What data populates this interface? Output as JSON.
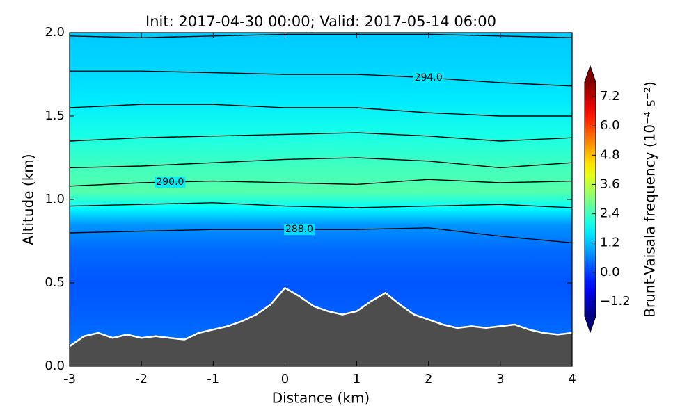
{
  "chart_data": {
    "type": "contour",
    "title": "Init: 2017-04-30 00:00; Valid: 2017-05-14 06:00",
    "xlabel": "Distance (km)",
    "ylabel": "Altitude (km)",
    "xlim": [
      -3,
      4
    ],
    "ylim": [
      0,
      2
    ],
    "xticks": [
      -3,
      -2,
      -1,
      0,
      1,
      2,
      3,
      4
    ],
    "yticks": [
      {
        "value": 0,
        "label": "0.0"
      },
      {
        "value": 0.5,
        "label": "0.5"
      },
      {
        "value": 1,
        "label": "1.0"
      },
      {
        "value": 1.5,
        "label": "1.5"
      },
      {
        "value": 2,
        "label": "2.0"
      }
    ],
    "colormap": "jet",
    "colorbar": {
      "label": "Brunt-Vaisala frequency (10⁻⁴ s⁻²)",
      "lim": [
        -1.8,
        7.8
      ],
      "ticks": [
        {
          "value": -1.2,
          "label": "−1.2"
        },
        {
          "value": 0,
          "label": "0.0"
        },
        {
          "value": 1.2,
          "label": "1.2"
        },
        {
          "value": 2.4,
          "label": "2.4"
        },
        {
          "value": 3.6,
          "label": "3.6"
        },
        {
          "value": 4.8,
          "label": "4.8"
        },
        {
          "value": 6,
          "label": "6.0"
        },
        {
          "value": 7.2,
          "label": "7.2"
        }
      ]
    },
    "field": {
      "y": [
        0,
        0.3,
        0.5,
        0.7,
        0.85,
        0.95,
        1.05,
        1.2,
        1.4,
        1.6,
        1.8,
        2.0
      ],
      "values": [
        0.6,
        0.3,
        0.2,
        0.4,
        0.8,
        1.8,
        2.6,
        2.4,
        2.0,
        1.6,
        1.4,
        1.3
      ]
    },
    "terrain": {
      "color": "#4d4d4d",
      "x": [
        -3,
        -2.8,
        -2.6,
        -2.4,
        -2.2,
        -2,
        -1.8,
        -1.6,
        -1.4,
        -1.2,
        -1,
        -0.8,
        -0.6,
        -0.4,
        -0.2,
        0,
        0.2,
        0.4,
        0.6,
        0.8,
        1,
        1.2,
        1.4,
        1.6,
        1.8,
        2,
        2.2,
        2.4,
        2.6,
        2.8,
        3,
        3.2,
        3.4,
        3.6,
        3.8,
        4
      ],
      "values": [
        0.12,
        0.18,
        0.2,
        0.17,
        0.19,
        0.17,
        0.18,
        0.17,
        0.16,
        0.2,
        0.22,
        0.24,
        0.27,
        0.31,
        0.37,
        0.47,
        0.42,
        0.36,
        0.33,
        0.31,
        0.33,
        0.39,
        0.44,
        0.37,
        0.31,
        0.28,
        0.25,
        0.23,
        0.24,
        0.23,
        0.24,
        0.25,
        0.22,
        0.2,
        0.19,
        0.2
      ]
    },
    "contour_x": [
      -3,
      -2,
      -1,
      0,
      1,
      2,
      3,
      4
    ],
    "contours": [
      {
        "level": 288,
        "label": "288.0",
        "values": [
          0.8,
          0.81,
          0.82,
          0.82,
          0.82,
          0.83,
          0.78,
          0.74
        ]
      },
      {
        "level": 289,
        "values": [
          0.96,
          0.97,
          0.98,
          0.96,
          0.95,
          0.96,
          0.97,
          0.95
        ]
      },
      {
        "level": 290,
        "label": "290.0",
        "values": [
          1.08,
          1.1,
          1.11,
          1.1,
          1.09,
          1.12,
          1.1,
          1.11
        ]
      },
      {
        "level": 291,
        "values": [
          1.19,
          1.2,
          1.22,
          1.24,
          1.25,
          1.23,
          1.19,
          1.22
        ]
      },
      {
        "level": 292,
        "values": [
          1.35,
          1.37,
          1.38,
          1.39,
          1.4,
          1.38,
          1.35,
          1.37
        ]
      },
      {
        "level": 293,
        "values": [
          1.55,
          1.57,
          1.57,
          1.55,
          1.55,
          1.52,
          1.5,
          1.5
        ]
      },
      {
        "level": 294,
        "label": "294.0",
        "values": [
          1.77,
          1.77,
          1.76,
          1.75,
          1.75,
          1.73,
          1.7,
          1.68
        ]
      },
      {
        "level": 295,
        "values": [
          1.98,
          1.97,
          1.98,
          1.99,
          1.99,
          1.99,
          1.98,
          1.97
        ]
      }
    ]
  }
}
